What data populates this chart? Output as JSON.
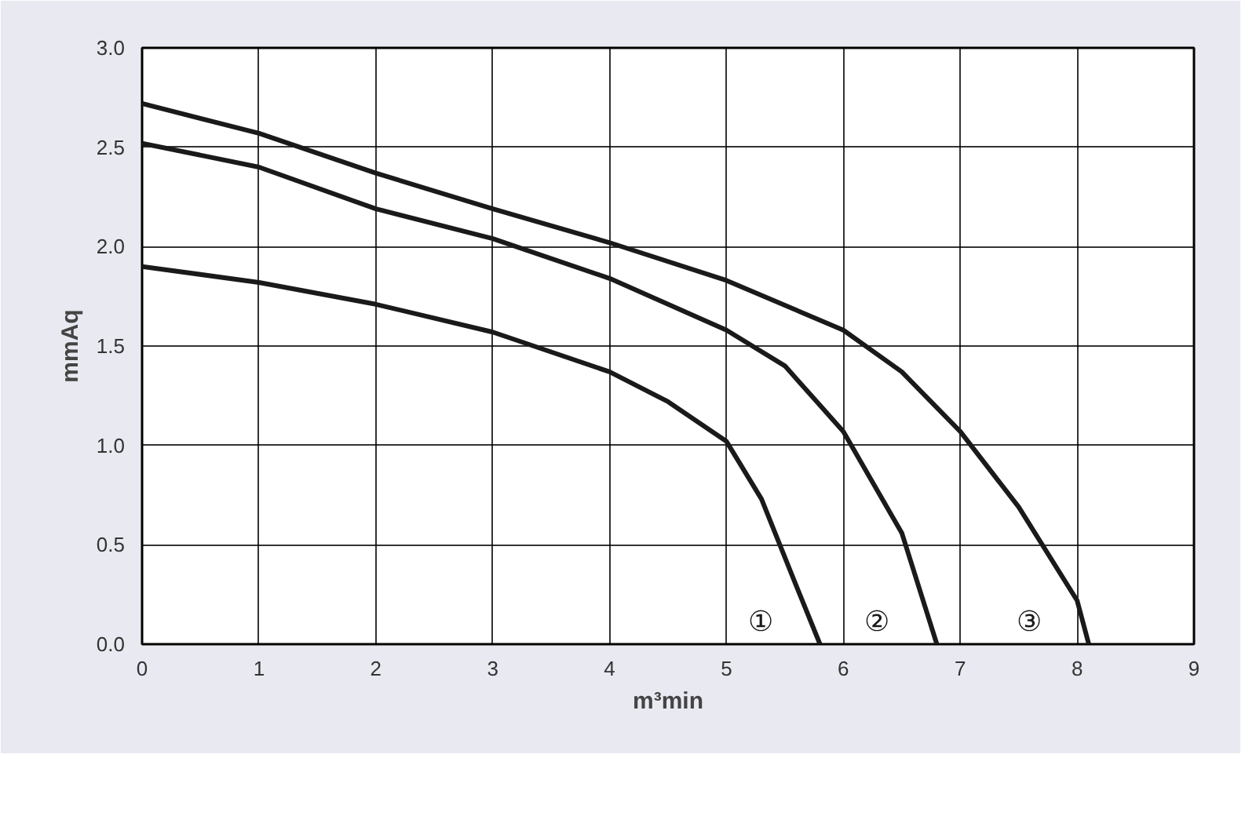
{
  "chart_data": {
    "type": "line",
    "xlabel": "m³min",
    "ylabel": "mmAq",
    "xlim": [
      0,
      9
    ],
    "ylim": [
      0,
      3
    ],
    "xticks": [
      0,
      1,
      2,
      3,
      4,
      5,
      6,
      7,
      8,
      9
    ],
    "yticks": [
      {
        "value": 0,
        "label": "0.0"
      },
      {
        "value": 0.5,
        "label": "0.5"
      },
      {
        "value": 1,
        "label": "1.0"
      },
      {
        "value": 1.5,
        "label": "1.5"
      },
      {
        "value": 2,
        "label": "2.0"
      },
      {
        "value": 2.5,
        "label": "2.5"
      },
      {
        "value": 3,
        "label": "3.0"
      }
    ],
    "grid": true,
    "marker": "none",
    "line_style": "solid",
    "series": [
      {
        "name": "①",
        "color": "#1a1a1a",
        "x": [
          0,
          1,
          2,
          3,
          4,
          4.5,
          5,
          5.3,
          5.6,
          5.8
        ],
        "values": [
          1.9,
          1.82,
          1.71,
          1.57,
          1.37,
          1.22,
          1.02,
          0.73,
          0.29,
          0
        ]
      },
      {
        "name": "②",
        "color": "#1a1a1a",
        "x": [
          0,
          1,
          2,
          3,
          4,
          5,
          5.5,
          6,
          6.5,
          6.8
        ],
        "values": [
          2.52,
          2.4,
          2.19,
          2.04,
          1.84,
          1.58,
          1.4,
          1.07,
          0.56,
          0
        ]
      },
      {
        "name": "③",
        "color": "#1a1a1a",
        "x": [
          0,
          1,
          2,
          3,
          4,
          5,
          6,
          6.5,
          7,
          7.5,
          8,
          8.1
        ],
        "values": [
          2.72,
          2.57,
          2.37,
          2.19,
          2.02,
          1.83,
          1.58,
          1.37,
          1.07,
          0.69,
          0.22,
          0
        ]
      }
    ]
  }
}
